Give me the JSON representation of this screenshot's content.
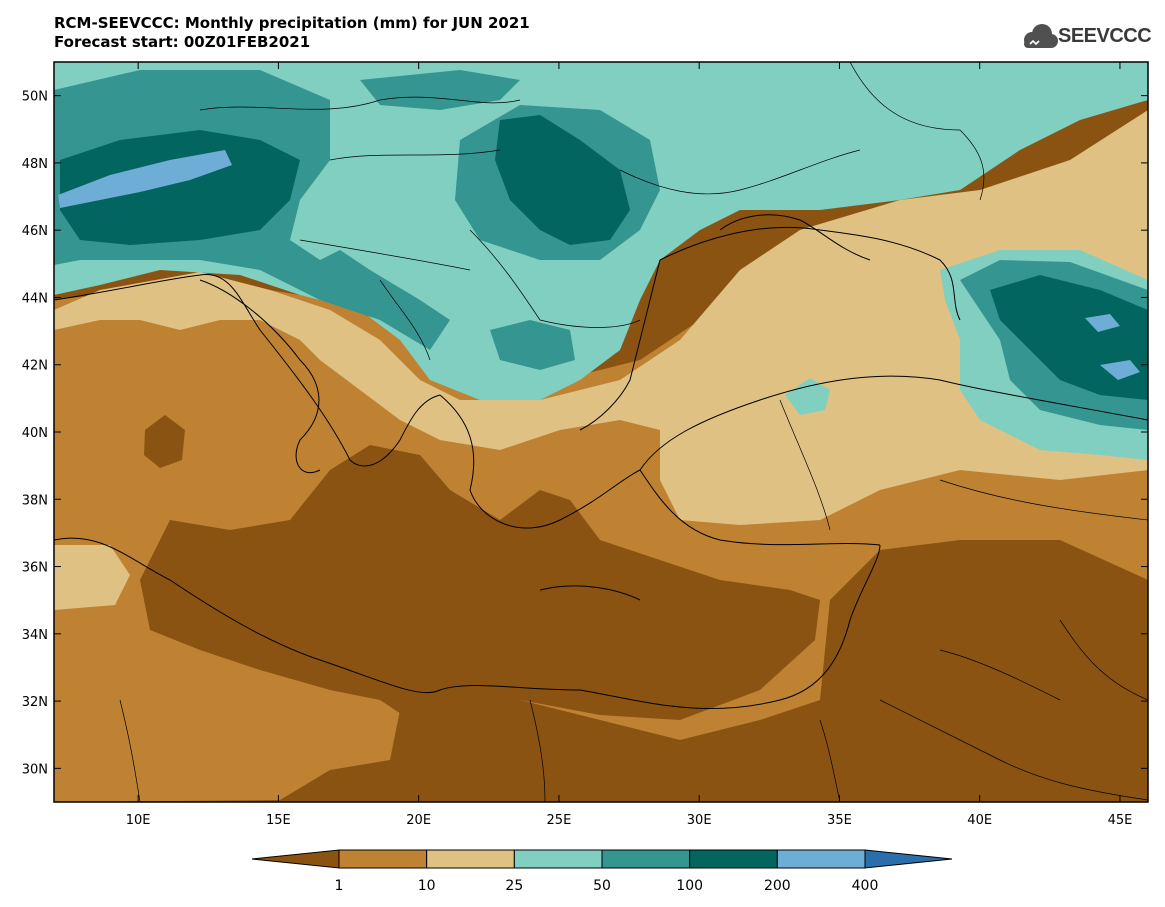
{
  "header": {
    "title_line1": "RCM-SEEVCCC: Monthly precipitation (mm) for JUN 2021",
    "title_line2": "Forecast start: 00Z01FEB2021"
  },
  "logo": {
    "text": "SEEVCCC",
    "icon": "cloud-icon"
  },
  "map": {
    "lon_range": [
      7,
      46
    ],
    "lat_range": [
      29,
      51
    ],
    "lon_ticks": [
      {
        "value": 10,
        "label": "10E"
      },
      {
        "value": 15,
        "label": "15E"
      },
      {
        "value": 20,
        "label": "20E"
      },
      {
        "value": 25,
        "label": "25E"
      },
      {
        "value": 30,
        "label": "30E"
      },
      {
        "value": 35,
        "label": "35E"
      },
      {
        "value": 40,
        "label": "40E"
      },
      {
        "value": 45,
        "label": "45E"
      }
    ],
    "lat_ticks": [
      {
        "value": 30,
        "label": "30N"
      },
      {
        "value": 32,
        "label": "32N"
      },
      {
        "value": 34,
        "label": "34N"
      },
      {
        "value": 36,
        "label": "36N"
      },
      {
        "value": 38,
        "label": "38N"
      },
      {
        "value": 40,
        "label": "40N"
      },
      {
        "value": 42,
        "label": "42N"
      },
      {
        "value": 44,
        "label": "44N"
      },
      {
        "value": 46,
        "label": "46N"
      },
      {
        "value": 48,
        "label": "48N"
      },
      {
        "value": 50,
        "label": "50N"
      }
    ]
  },
  "colorbar": {
    "colors": [
      "#8b5311",
      "#bf8233",
      "#dfc283",
      "#80cfc1",
      "#359590",
      "#026560",
      "#6eaed6",
      "#2a6eab"
    ],
    "labels": [
      "1",
      "10",
      "25",
      "50",
      "100",
      "200",
      "400"
    ]
  }
}
